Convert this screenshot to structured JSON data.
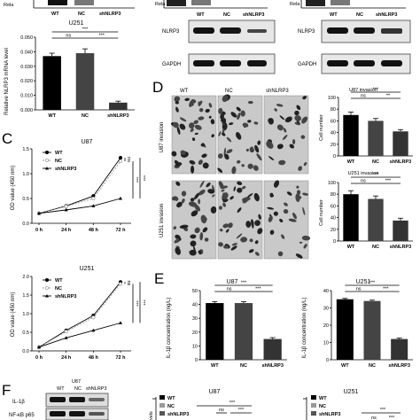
{
  "panels": {
    "A": {
      "top_groups": [
        "WT",
        "NC",
        "shNLRP3"
      ],
      "top_ylabel": "Rela",
      "chart_data": {
        "type": "bar",
        "title": "U251",
        "ylabel": "Relative NLRP3 mRNA level",
        "categories": [
          "WT",
          "NC",
          "shNLRP3"
        ],
        "values": [
          0.037,
          0.039,
          0.005
        ],
        "errors": [
          0.002,
          0.003,
          0.001
        ],
        "ylim": [
          0,
          0.05
        ],
        "yticks": [
          "0.000",
          "0.010",
          "0.020",
          "0.030",
          "0.040",
          "0.050"
        ],
        "significance": [
          {
            "pair": [
              0,
              1
            ],
            "label": "ns"
          },
          {
            "pair": [
              1,
              2
            ],
            "label": "***"
          },
          {
            "pair": [
              0,
              2
            ],
            "label": "***"
          }
        ]
      }
    },
    "B": {
      "groups": [
        "WT",
        "NC",
        "shNLRP3"
      ],
      "label_top": "Rela",
      "bands": [
        "NLRP3",
        "GAPDH"
      ]
    },
    "B2": {
      "groups": [
        "WT",
        "NC",
        "shNLRP3"
      ],
      "label_top": "Rela",
      "bands": [
        "NLRP3",
        "GAPDH"
      ]
    },
    "C": {
      "letter": "C",
      "charts": [
        {
          "type": "line",
          "title": "U87",
          "ylabel": "OD value (450 nm)",
          "x": [
            "0 h",
            "24 h",
            "48 h",
            "72 h"
          ],
          "ylim": [
            0,
            1.5
          ],
          "yticks": [
            "0.0",
            "0.5",
            "1.0",
            "1.5"
          ],
          "series": [
            {
              "name": "WT",
              "values": [
                0.2,
                0.35,
                0.55,
                1.32
              ]
            },
            {
              "name": "NC",
              "values": [
                0.2,
                0.34,
                0.5,
                1.25
              ]
            },
            {
              "name": "shNLRP3",
              "values": [
                0.2,
                0.27,
                0.35,
                0.5
              ]
            }
          ],
          "significance": [
            "ns",
            "***",
            "***"
          ]
        },
        {
          "type": "line",
          "title": "U251",
          "ylabel": "OD value (450 nm)",
          "x": [
            "0 h",
            "24 h",
            "48 h",
            "72 h"
          ],
          "ylim": [
            0,
            2.0
          ],
          "yticks": [
            "0.0",
            "0.5",
            "1.0",
            "1.5",
            "2.0"
          ],
          "series": [
            {
              "name": "WT",
              "values": [
                0.1,
                0.55,
                0.95,
                1.85
              ]
            },
            {
              "name": "NC",
              "values": [
                0.1,
                0.52,
                0.9,
                1.8
              ]
            },
            {
              "name": "shNLRP3",
              "values": [
                0.1,
                0.35,
                0.55,
                0.75
              ]
            }
          ],
          "significance": [
            "ns",
            "***",
            "***"
          ]
        }
      ]
    },
    "D": {
      "letter": "D",
      "groups": [
        "WT",
        "NC",
        "shNLRP3"
      ],
      "row_labels": [
        "U87 invasion",
        "U251 invasion"
      ],
      "charts": [
        {
          "type": "bar",
          "title": "U87 invasion",
          "ylabel": "Cell number",
          "categories": [
            "WT",
            "NC",
            "shNLRP3"
          ],
          "values": [
            70,
            60,
            42
          ],
          "errors": [
            5,
            4,
            3
          ],
          "ylim": [
            0,
            100
          ],
          "yticks": [
            "0",
            "20",
            "40",
            "60",
            "80",
            "100"
          ],
          "significance": [
            "ns",
            "**",
            "***"
          ]
        },
        {
          "type": "bar",
          "title": "U251 invasion",
          "ylabel": "Cell number",
          "categories": [
            "WT",
            "NC",
            "shNLRP3"
          ],
          "values": [
            80,
            72,
            35
          ],
          "errors": [
            6,
            5,
            4
          ],
          "ylim": [
            0,
            100
          ],
          "yticks": [
            "0",
            "20",
            "40",
            "60",
            "80",
            "100"
          ],
          "significance": [
            "ns",
            "***",
            "***"
          ]
        }
      ]
    },
    "E": {
      "letter": "E",
      "charts": [
        {
          "type": "bar",
          "title": "U87",
          "ylabel": "IL-1β concentration (ng/L)",
          "categories": [
            "WT",
            "NC",
            "shNLRP3"
          ],
          "values": [
            41,
            41,
            15
          ],
          "errors": [
            1,
            1,
            1
          ],
          "ylim": [
            0,
            50
          ],
          "yticks": [
            "0",
            "10",
            "20",
            "30",
            "40",
            "50"
          ],
          "significance": [
            "ns",
            "***",
            "***"
          ]
        },
        {
          "type": "bar",
          "title": "U251",
          "ylabel": "IL-1β concentration (ng/L)",
          "categories": [
            "WT",
            "NC",
            "shNLRP3"
          ],
          "values": [
            35,
            34,
            12
          ],
          "errors": [
            0.5,
            0.5,
            0.5
          ],
          "ylim": [
            0,
            40
          ],
          "yticks": [
            "0",
            "10",
            "20",
            "30",
            "40"
          ],
          "significance": [
            "ns",
            "***",
            "***"
          ]
        }
      ]
    },
    "F": {
      "letter": "F",
      "blot_header": [
        "U87",
        "WT",
        "NC",
        "shNLRP3"
      ],
      "bands": [
        "IL-1β",
        "NF-κB p65"
      ],
      "charts": [
        {
          "title": "U87",
          "legend": [
            "WT",
            "NC",
            "shNLRP3"
          ],
          "significance": [
            "***",
            "ns",
            "***"
          ],
          "ylabel_fragment": "vels"
        },
        {
          "title": "U251",
          "legend": [
            "WT",
            "NC",
            "shNLRP3"
          ],
          "significance": [
            "***",
            "ns",
            "***"
          ]
        }
      ]
    }
  }
}
